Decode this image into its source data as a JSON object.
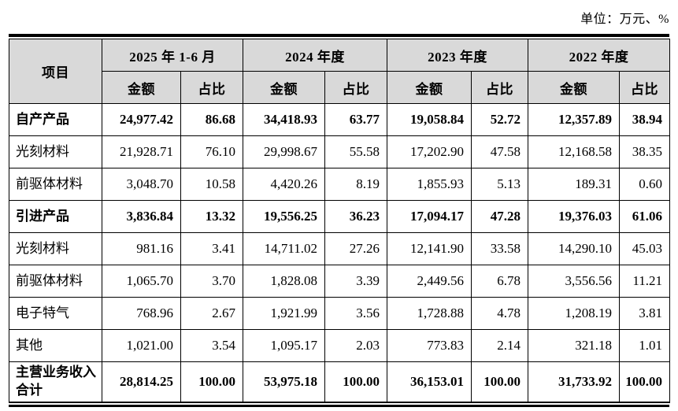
{
  "unit_note": "单位：万元、%",
  "colors": {
    "header_bg": "#d9d9d9",
    "border": "#000000",
    "background": "#ffffff"
  },
  "table": {
    "item_header": "项目",
    "col_groups": [
      {
        "label": "2025 年 1-6 月"
      },
      {
        "label": "2024 年度"
      },
      {
        "label": "2023 年度"
      },
      {
        "label": "2022 年度"
      }
    ],
    "sub_headers": [
      "金额",
      "占比"
    ],
    "rows": [
      {
        "label": "自产产品",
        "bold": true,
        "values": [
          "24,977.42",
          "86.68",
          "34,418.93",
          "63.77",
          "19,058.84",
          "52.72",
          "12,357.89",
          "38.94"
        ]
      },
      {
        "label": "光刻材料",
        "bold": false,
        "values": [
          "21,928.71",
          "76.10",
          "29,998.67",
          "55.58",
          "17,202.90",
          "47.58",
          "12,168.58",
          "38.35"
        ]
      },
      {
        "label": "前驱体材料",
        "bold": false,
        "values": [
          "3,048.70",
          "10.58",
          "4,420.26",
          "8.19",
          "1,855.93",
          "5.13",
          "189.31",
          "0.60"
        ]
      },
      {
        "label": "引进产品",
        "bold": true,
        "values": [
          "3,836.84",
          "13.32",
          "19,556.25",
          "36.23",
          "17,094.17",
          "47.28",
          "19,376.03",
          "61.06"
        ]
      },
      {
        "label": "光刻材料",
        "bold": false,
        "values": [
          "981.16",
          "3.41",
          "14,711.02",
          "27.26",
          "12,141.90",
          "33.58",
          "14,290.10",
          "45.03"
        ]
      },
      {
        "label": "前驱体材料",
        "bold": false,
        "values": [
          "1,065.70",
          "3.70",
          "1,828.08",
          "3.39",
          "2,449.56",
          "6.78",
          "3,556.56",
          "11.21"
        ]
      },
      {
        "label": "电子特气",
        "bold": false,
        "values": [
          "768.96",
          "2.67",
          "1,921.99",
          "3.56",
          "1,728.88",
          "4.78",
          "1,208.19",
          "3.81"
        ]
      },
      {
        "label": "其他",
        "bold": false,
        "values": [
          "1,021.00",
          "3.54",
          "1,095.17",
          "2.03",
          "773.83",
          "2.14",
          "321.18",
          "1.01"
        ]
      },
      {
        "label": "主营业务收入合计",
        "bold": true,
        "values": [
          "28,814.25",
          "100.00",
          "53,975.18",
          "100.00",
          "36,153.01",
          "100.00",
          "31,733.92",
          "100.00"
        ]
      }
    ]
  }
}
